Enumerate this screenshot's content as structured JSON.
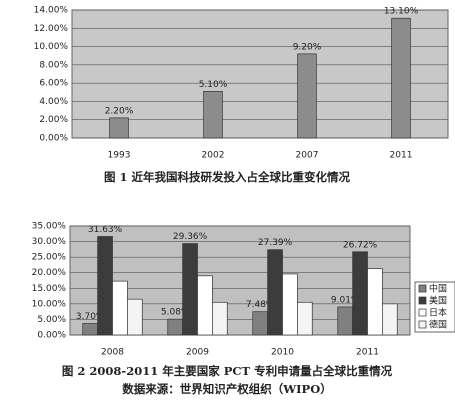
{
  "chart_data": [
    {
      "type": "bar",
      "title": "图 1  近年我国科技研发投入占全球比重变化情况",
      "categories": [
        "1993",
        "2002",
        "2007",
        "2011"
      ],
      "values": [
        2.2,
        5.1,
        9.2,
        13.1
      ],
      "value_labels": [
        "2.20%",
        "5.10%",
        "9.20%",
        "13.10%"
      ],
      "color": "#8c8c8c",
      "ylim": [
        0,
        14
      ],
      "yticks": [
        {
          "value": 0,
          "label": "0.00%"
        },
        {
          "value": 2,
          "label": "2.00%"
        },
        {
          "value": 4,
          "label": "4.00%"
        },
        {
          "value": 6,
          "label": "6.00%"
        },
        {
          "value": 8,
          "label": "8.00%"
        },
        {
          "value": 10,
          "label": "10.00%"
        },
        {
          "value": 12,
          "label": "12.00%"
        },
        {
          "value": 14,
          "label": "14.00%"
        }
      ],
      "grid": true
    },
    {
      "type": "bar",
      "title": "图 2  2008-2011 年主要国家 PCT 专利申请量占全球比重情况",
      "subtitle": "数据来源：世界知识产权组织（WIPO）",
      "categories": [
        "2008",
        "2009",
        "2010",
        "2011"
      ],
      "series": [
        {
          "name": "中国",
          "color": "#808080",
          "values": [
            3.7,
            5.08,
            7.48,
            9.01
          ],
          "value_labels": [
            "3.70%",
            "5.08%",
            "7.48%",
            "9.01%"
          ]
        },
        {
          "name": "美国",
          "color": "#3c3c3c",
          "values": [
            31.63,
            29.36,
            27.39,
            26.72
          ],
          "value_labels": [
            "31.63%",
            "29.36%",
            "27.39%",
            "26.72%"
          ]
        },
        {
          "name": "日本",
          "color": "#ffffff",
          "values": [
            17.3,
            19.0,
            19.6,
            21.3
          ]
        },
        {
          "name": "德国",
          "color": "#f4f4f4",
          "values": [
            11.5,
            10.5,
            10.5,
            10.0
          ]
        }
      ],
      "ylim": [
        0,
        35
      ],
      "yticks": [
        {
          "value": 0,
          "label": "0.00%"
        },
        {
          "value": 5,
          "label": "5.00%"
        },
        {
          "value": 10,
          "label": "10.00%"
        },
        {
          "value": 15,
          "label": "15.00%"
        },
        {
          "value": 20,
          "label": "20.00%"
        },
        {
          "value": 25,
          "label": "25.00%"
        },
        {
          "value": 30,
          "label": "30.00%"
        },
        {
          "value": 35,
          "label": "35.00%"
        }
      ],
      "grid": true,
      "legend": "right"
    }
  ]
}
